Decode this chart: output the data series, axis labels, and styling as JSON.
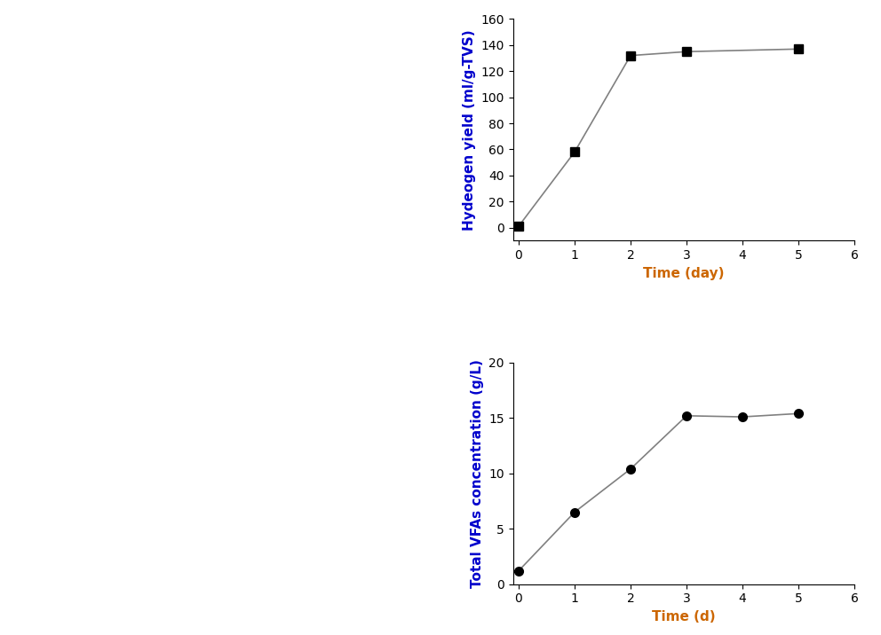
{
  "top_chart": {
    "x": [
      0,
      1,
      2,
      3,
      5
    ],
    "y": [
      1,
      58,
      132,
      135,
      137
    ],
    "xlabel": "Time (day)",
    "ylabel": "Hydeogen yield (ml/g-TVS)",
    "xlim": [
      -0.1,
      6
    ],
    "ylim": [
      -10,
      160
    ],
    "yticks": [
      0,
      20,
      40,
      60,
      80,
      100,
      120,
      140,
      160
    ],
    "xticks": [
      0,
      1,
      2,
      3,
      4,
      5,
      6
    ],
    "marker": "s",
    "markersize": 7,
    "color": "black",
    "linecolor": "gray",
    "linewidth": 1.2
  },
  "bottom_chart": {
    "x": [
      0,
      1,
      2,
      3,
      4,
      5
    ],
    "y": [
      1.2,
      6.5,
      10.4,
      15.2,
      15.1,
      15.4
    ],
    "xlabel": "Time (d)",
    "ylabel": "Total VFAs concentration (g/L)",
    "xlim": [
      -0.1,
      6
    ],
    "ylim": [
      0,
      20
    ],
    "yticks": [
      0,
      5,
      10,
      15,
      20
    ],
    "xticks": [
      0,
      1,
      2,
      3,
      4,
      5,
      6
    ],
    "marker": "o",
    "markersize": 7,
    "color": "black",
    "linecolor": "gray",
    "linewidth": 1.2
  },
  "xlabel_color_top": "#cc6600",
  "xlabel_color_bottom": "#cc6600",
  "ylabel_color": "#0000cc",
  "label_fontsize": 11,
  "tick_fontsize": 10,
  "figure_bg": "white",
  "left_panel_bg": "white"
}
